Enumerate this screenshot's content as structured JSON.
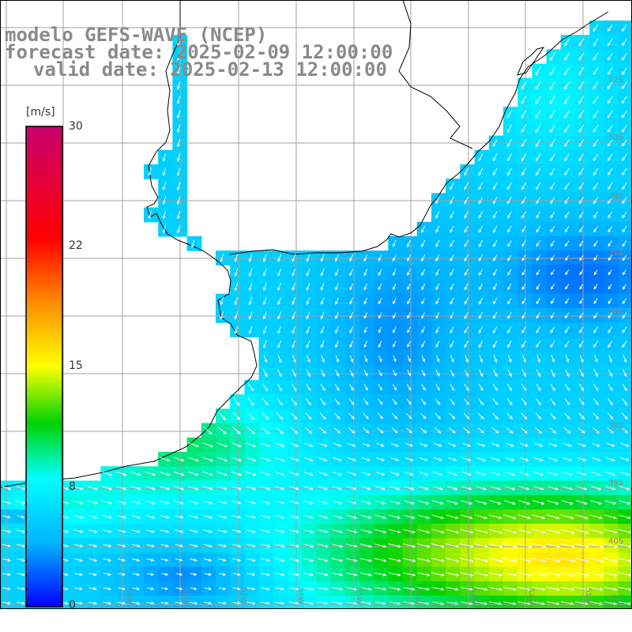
{
  "title": {
    "line1": "modelo GEFS-WAVE (NCEP)",
    "line2": "forecast date: 2025-02-09 12:00:00",
    "line3": "valid date: 2025-02-13 12:00:00"
  },
  "colorbar": {
    "unit": "[m/s]",
    "range": [
      0,
      30
    ],
    "ticks": [
      "30",
      "22",
      "15",
      "8",
      "0"
    ],
    "tick_values": [
      30,
      22,
      15,
      8,
      0
    ],
    "colors": [
      "#0000ff",
      "#00b4ff",
      "#00ffff",
      "#00d200",
      "#ffff00",
      "#ff8c00",
      "#ff0000",
      "#c8006e"
    ],
    "color_stops": [
      0,
      4,
      8,
      11.5,
      15,
      19,
      23,
      30
    ]
  },
  "map": {
    "lon_labels": [
      "59W",
      "58W",
      "57W",
      "56W",
      "55W",
      "54W",
      "53W",
      "52W",
      "51W"
    ],
    "lat_labels": [
      "32S",
      "33S",
      "34S",
      "35S",
      "36S",
      "38S",
      "39S",
      "40S",
      "41S"
    ],
    "land_color": "#ffffff",
    "grid_color": "#a0a0a0",
    "coast_color": "#000000"
  }
}
